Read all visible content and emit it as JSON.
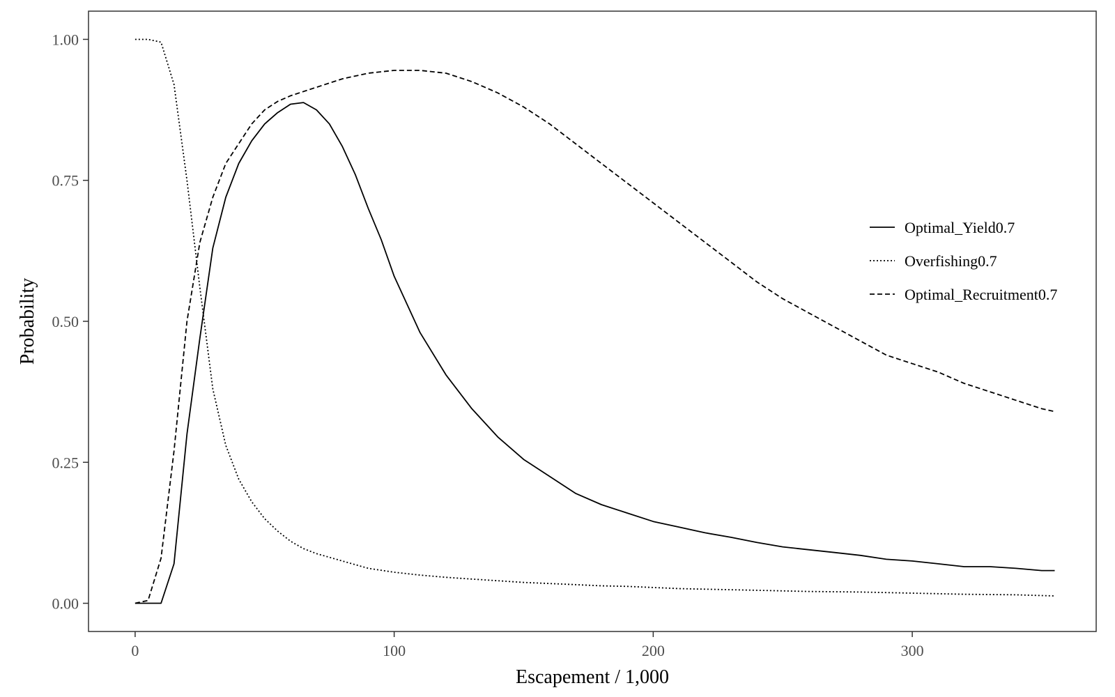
{
  "chart_data": {
    "type": "line",
    "xlabel": "Escapement / 1,000",
    "ylabel": "Probability",
    "xlim": [
      -18,
      371
    ],
    "ylim": [
      -0.05,
      1.05
    ],
    "x_ticks": [
      0,
      100,
      200,
      300
    ],
    "x_tick_labels": [
      "0",
      "100",
      "200",
      "300"
    ],
    "y_ticks": [
      0,
      0.25,
      0.5,
      0.75,
      1
    ],
    "y_tick_labels": [
      "0.00",
      "0.25",
      "0.50",
      "0.75",
      "1.00"
    ],
    "grid": false,
    "legend_position": "right",
    "series": [
      {
        "name": "Optimal_Yield0.7",
        "line_style": "solid",
        "color": "#000000",
        "x": [
          0,
          5,
          10,
          15,
          20,
          25,
          30,
          35,
          40,
          45,
          50,
          55,
          60,
          65,
          70,
          75,
          80,
          85,
          90,
          95,
          100,
          110,
          120,
          130,
          140,
          150,
          160,
          170,
          180,
          190,
          200,
          210,
          220,
          230,
          240,
          250,
          260,
          270,
          280,
          290,
          300,
          310,
          320,
          330,
          340,
          350,
          355
        ],
        "y": [
          0,
          0,
          0,
          0.07,
          0.3,
          0.47,
          0.63,
          0.72,
          0.78,
          0.82,
          0.85,
          0.87,
          0.885,
          0.888,
          0.875,
          0.85,
          0.81,
          0.76,
          0.7,
          0.645,
          0.58,
          0.48,
          0.405,
          0.345,
          0.295,
          0.255,
          0.225,
          0.195,
          0.175,
          0.16,
          0.145,
          0.135,
          0.125,
          0.117,
          0.108,
          0.1,
          0.095,
          0.09,
          0.085,
          0.078,
          0.075,
          0.07,
          0.065,
          0.065,
          0.062,
          0.058,
          0.058
        ]
      },
      {
        "name": "Overfishing0.7",
        "line_style": "dotted",
        "color": "#000000",
        "x": [
          0,
          5,
          10,
          15,
          20,
          25,
          30,
          35,
          40,
          45,
          50,
          55,
          60,
          65,
          70,
          80,
          90,
          100,
          110,
          120,
          130,
          140,
          150,
          160,
          170,
          180,
          190,
          200,
          210,
          220,
          240,
          260,
          280,
          300,
          320,
          340,
          355
        ],
        "y": [
          1,
          1,
          0.995,
          0.92,
          0.75,
          0.56,
          0.38,
          0.28,
          0.22,
          0.18,
          0.15,
          0.128,
          0.11,
          0.097,
          0.088,
          0.075,
          0.062,
          0.055,
          0.05,
          0.046,
          0.043,
          0.04,
          0.037,
          0.035,
          0.033,
          0.031,
          0.03,
          0.028,
          0.026,
          0.025,
          0.023,
          0.021,
          0.02,
          0.018,
          0.016,
          0.015,
          0.013
        ]
      },
      {
        "name": "Optimal_Recruitment0.7",
        "line_style": "dashed",
        "color": "#000000",
        "x": [
          0,
          5,
          10,
          15,
          20,
          25,
          30,
          35,
          40,
          45,
          50,
          55,
          60,
          70,
          80,
          90,
          100,
          110,
          120,
          130,
          140,
          150,
          160,
          170,
          180,
          190,
          200,
          210,
          220,
          230,
          240,
          250,
          260,
          270,
          280,
          290,
          300,
          310,
          320,
          330,
          340,
          350,
          355
        ],
        "y": [
          0,
          0.005,
          0.08,
          0.27,
          0.5,
          0.64,
          0.72,
          0.78,
          0.815,
          0.85,
          0.875,
          0.89,
          0.9,
          0.915,
          0.93,
          0.94,
          0.945,
          0.945,
          0.94,
          0.925,
          0.905,
          0.88,
          0.85,
          0.815,
          0.78,
          0.745,
          0.71,
          0.675,
          0.64,
          0.605,
          0.57,
          0.54,
          0.515,
          0.49,
          0.465,
          0.44,
          0.425,
          0.41,
          0.39,
          0.375,
          0.36,
          0.345,
          0.34
        ]
      }
    ]
  }
}
